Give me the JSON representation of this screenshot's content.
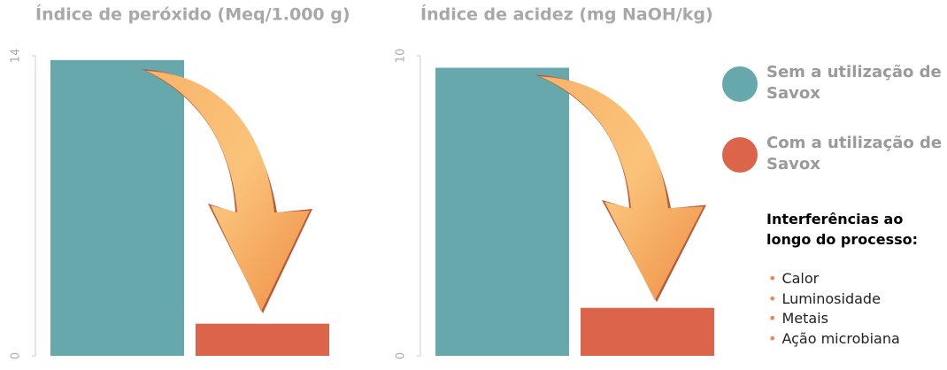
{
  "chart_data": [
    {
      "type": "bar",
      "title": "Índice de peróxido (Meq/1.000 g)",
      "categories": [
        null
      ],
      "series": [
        {
          "name": "Sem a utilização de Savox",
          "color": "#66a8ac",
          "values": [
            13.8
          ]
        },
        {
          "name": "Com a utilização de Savox",
          "color": "#dc644a",
          "values": [
            1.5
          ]
        }
      ],
      "ylim": [
        0,
        14
      ],
      "yticks": [
        0,
        14
      ]
    },
    {
      "type": "bar",
      "title": "Índice de acidez (mg NaOH/kg)",
      "categories": [
        null
      ],
      "series": [
        {
          "color": "#66a8ac",
          "values": [
            9.6
          ]
        },
        {
          "color": "#dc644a",
          "values": [
            1.6
          ]
        }
      ],
      "ylim": [
        0,
        10
      ],
      "yticks": [
        0,
        10
      ]
    }
  ],
  "notes": {
    "title": "Interferências ao longo do processo:",
    "items": [
      "Calor",
      "Luminosidade",
      "Metais",
      "Ação microbiana"
    ]
  }
}
